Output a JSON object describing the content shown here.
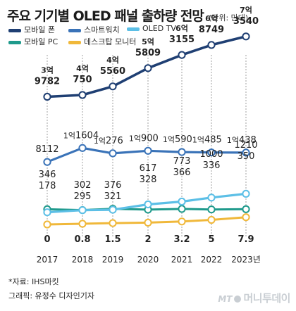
{
  "header": {
    "title": "주요 기기별 OLED 패널 출하량 전망",
    "unit_note": "(단위: 만대)"
  },
  "footer": {
    "source": "*자료: IHS마킷",
    "credit": "그래픽: 유정수 디자인기자"
  },
  "logo": {
    "latin": "MT",
    "korean": "머니투데이"
  },
  "chart_data": {
    "type": "line",
    "title": "주요 기기별 OLED 패널 출하량 전망",
    "unit": "만대",
    "categories": [
      "2017",
      "2018",
      "2019",
      "2020",
      "2021",
      "2022",
      "2023년"
    ],
    "grid": false,
    "legend_position": "top-left",
    "series": [
      {
        "name": "모바일 폰",
        "color": "#1f3f73",
        "values": [
          39782,
          40750,
          45560,
          55809,
          63155,
          68749,
          73540
        ],
        "labels": [
          [
            "3억",
            "9782"
          ],
          [
            "4억",
            "750"
          ],
          [
            "4억",
            "5560"
          ],
          [
            "5억",
            "5809"
          ],
          [
            "6억",
            "3155"
          ],
          [
            "6억",
            "8749"
          ],
          [
            "7억",
            "3540"
          ]
        ]
      },
      {
        "name": "스마트워치",
        "color": "#3a73b8",
        "values": [
          8112,
          11604,
          10276,
          10900,
          10590,
          10485,
          10438
        ],
        "labels": [
          [
            "8112"
          ],
          [
            "1억",
            "1604"
          ],
          [
            "1억",
            "276"
          ],
          [
            "1억",
            "900"
          ],
          [
            "1억",
            "590"
          ],
          [
            "1억",
            "485"
          ],
          [
            "1억",
            "438"
          ]
        ]
      },
      {
        "name": "OLED TV",
        "color": "#5cbfe6",
        "values": [
          178,
          295,
          321,
          617,
          773,
          1000,
          1210
        ],
        "labels": [
          [
            "178"
          ],
          [
            "295"
          ],
          [
            "321"
          ],
          [
            "617"
          ],
          [
            "773"
          ],
          [
            "1000"
          ],
          [
            "1210"
          ]
        ]
      },
      {
        "name": "모바일 PC",
        "color": "#1f9a8c",
        "values": [
          346,
          302,
          376,
          328,
          366,
          336,
          350
        ],
        "labels": [
          [
            "346"
          ],
          [
            "302"
          ],
          [
            "376"
          ],
          [
            "328"
          ],
          [
            "366"
          ],
          [
            "336"
          ],
          [
            "350"
          ]
        ]
      },
      {
        "name": "데스크탑 모니터",
        "color": "#f0b83a",
        "values": [
          0,
          0.8,
          1.5,
          2,
          3.2,
          5,
          7.9
        ],
        "labels": [
          [
            "0"
          ],
          [
            "0.8"
          ],
          [
            "1.5"
          ],
          [
            "2"
          ],
          [
            "3.2"
          ],
          [
            "5"
          ],
          [
            "7.9"
          ]
        ]
      }
    ]
  }
}
